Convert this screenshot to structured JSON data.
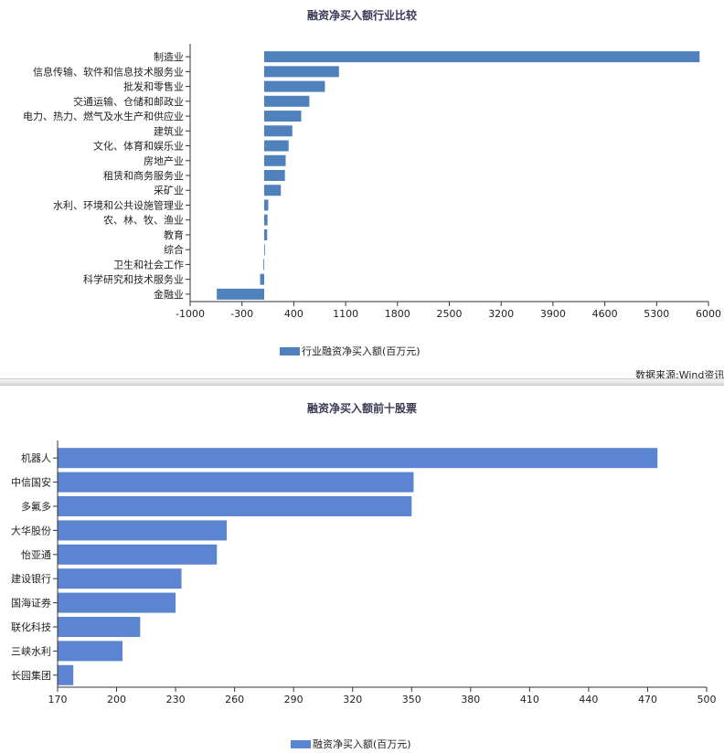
{
  "source_note": "数据来源:Wind资讯",
  "chart_data": [
    {
      "type": "bar",
      "orientation": "horizontal",
      "title": "融资净买入额行业比较",
      "categories": [
        "制造业",
        "信息传输、软件和信息技术服务业",
        "批发和零售业",
        "交通运输、仓储和邮政业",
        "电力、热力、燃气及水生产和供应业",
        "建筑业",
        "文化、体育和娱乐业",
        "房地产业",
        "租赁和商务服务业",
        "采矿业",
        "水利、环境和公共设施管理业",
        "农、林、牧、渔业",
        "教育",
        "综合",
        "卫生和社会工作",
        "科学研究和技术服务业",
        "金融业"
      ],
      "series": [
        {
          "name": "行业融资净买入额(百万元)",
          "values": [
            5880,
            1010,
            820,
            610,
            500,
            380,
            330,
            290,
            280,
            225,
            55,
            45,
            40,
            10,
            -10,
            -55,
            -640
          ]
        }
      ],
      "xlim": [
        -1000,
        6000
      ],
      "ticks": [
        "-1000",
        "-300",
        "400",
        "1100",
        "1800",
        "2500",
        "3200",
        "3900",
        "4600",
        "5300",
        "6000"
      ],
      "color": "#4f81bd",
      "legend_position": "bottom"
    },
    {
      "type": "bar",
      "orientation": "horizontal",
      "title": "融资净买入额前十股票",
      "categories": [
        "机器人",
        "中信国安",
        "多氟多",
        "大华股份",
        "怡亚通",
        "建设银行",
        "国海证券",
        "联化科技",
        "三峡水利",
        "长园集团"
      ],
      "series": [
        {
          "name": "融资净买入额(百万元)",
          "values": [
            475,
            351,
            350,
            256,
            251,
            233,
            230,
            212,
            203,
            178
          ]
        }
      ],
      "xlim": [
        170,
        500
      ],
      "ticks": [
        "170",
        "200",
        "230",
        "260",
        "290",
        "320",
        "350",
        "380",
        "410",
        "440",
        "470",
        "500"
      ],
      "color": "#5b84d1",
      "legend_position": "bottom"
    }
  ]
}
